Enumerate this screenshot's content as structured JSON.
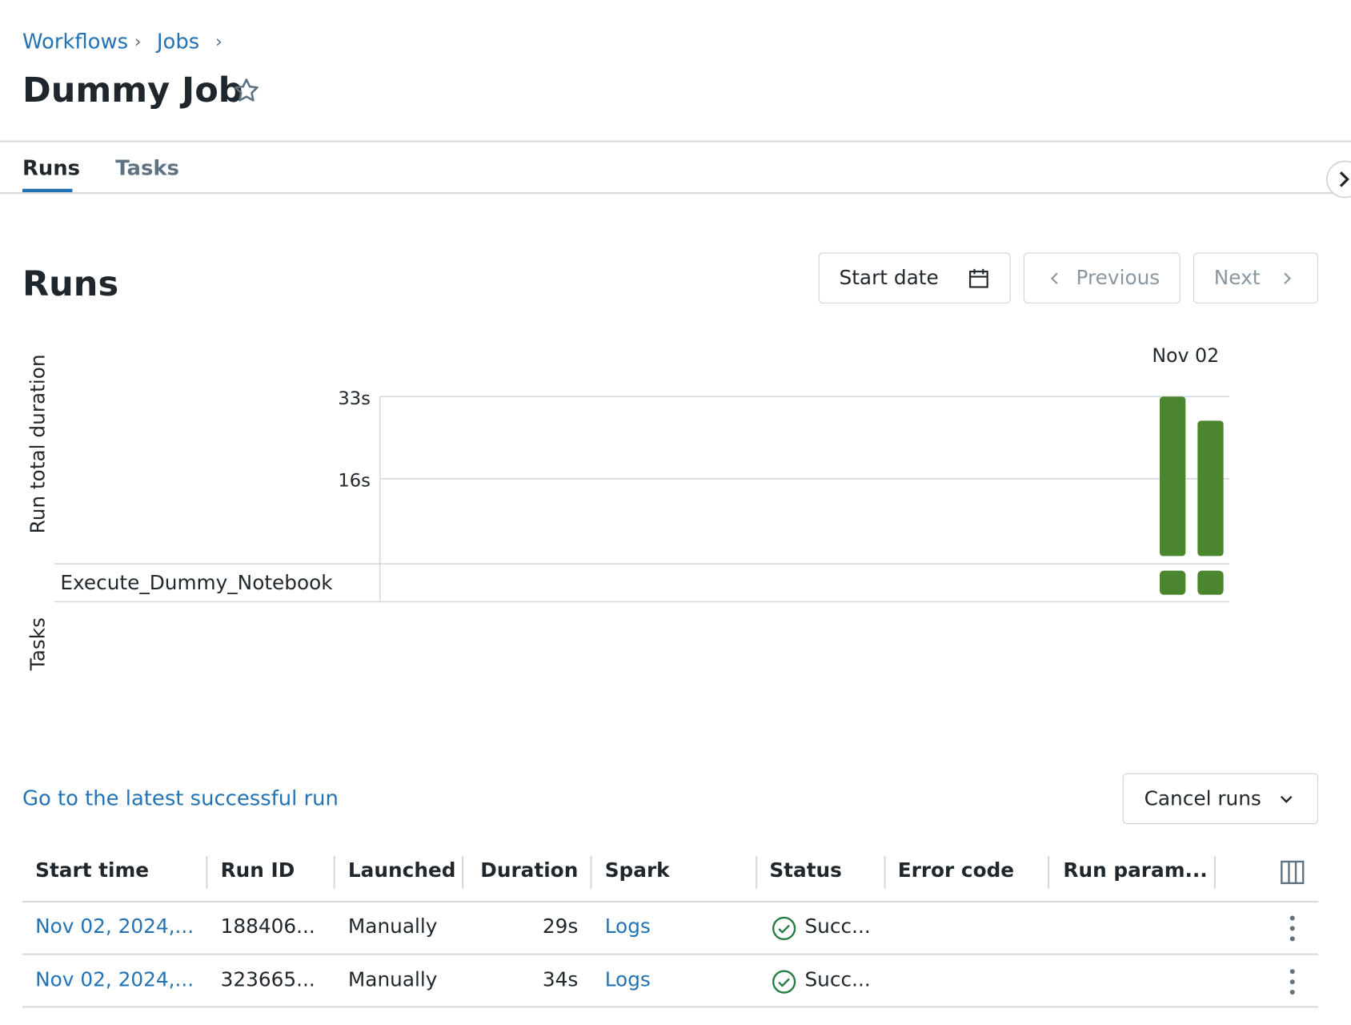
{
  "breadcrumb": [
    "Workflows",
    "Jobs"
  ],
  "header": {
    "title": "Dummy Job"
  },
  "tabs": [
    "Runs",
    "Tasks"
  ],
  "section_title": "Runs",
  "buttons": {
    "start_date": "Start date",
    "previous": "Previous",
    "next": "Next",
    "cancel_runs": "Cancel runs"
  },
  "chart_data": {
    "type": "bar",
    "y_label": "Run total duration",
    "tasks_label": "Tasks",
    "date_label": "Nov 02",
    "categories": [
      null,
      null
    ],
    "values": [
      33,
      28
    ],
    "color": "#4a862d",
    "ylim": [
      0,
      33
    ],
    "yticks": [
      {
        "value": 16,
        "label": "16s"
      },
      {
        "value": 33,
        "label": "33s"
      }
    ],
    "task_rows": [
      "Execute_Dummy_Notebook"
    ]
  },
  "link": "Go to the latest successful run",
  "table": {
    "columns": [
      "Start time",
      "Run ID",
      "Launched",
      "Duration",
      "Spark",
      "Status",
      "Error code",
      "Run param..."
    ],
    "rows": [
      [
        "Nov 02, 2024,...",
        "188406...",
        "Manually",
        "29s",
        "Logs",
        "Succ..."
      ],
      [
        "Nov 02, 2024,...",
        "323665...",
        "Manually",
        "34s",
        "Logs",
        "Succ..."
      ]
    ]
  }
}
